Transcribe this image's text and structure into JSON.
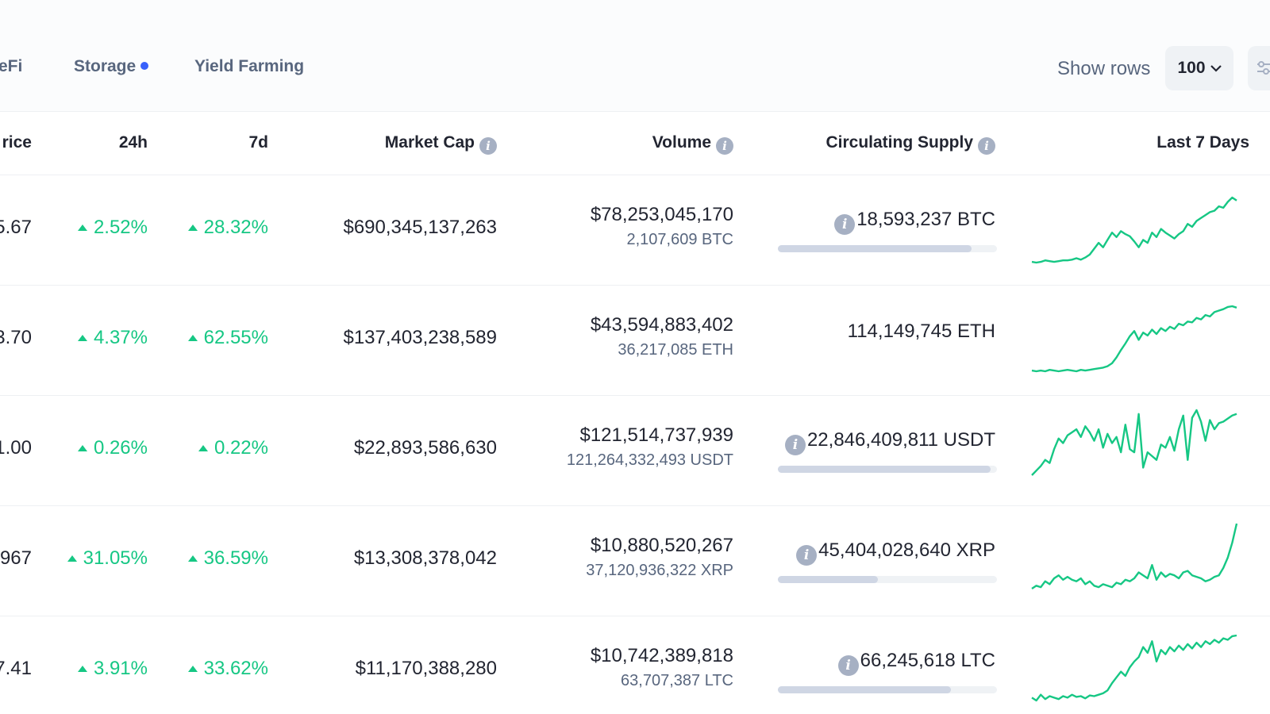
{
  "tabs": [
    {
      "label": "eFi",
      "dot": false
    },
    {
      "label": "Storage",
      "dot": true
    },
    {
      "label": "Yield Farming",
      "dot": false
    }
  ],
  "controls": {
    "show_rows_label": "Show rows",
    "rows_value": "100"
  },
  "columns": [
    "rice",
    "24h",
    "7d",
    "Market Cap",
    "Volume",
    "Circulating Supply",
    "Last 7 Days"
  ],
  "accent_color": "#16c784",
  "rows": [
    {
      "price": "5.67",
      "change_24h": "2.52%",
      "change_7d": "28.32%",
      "market_cap": "$690,345,137,263",
      "volume_usd": "$78,253,045,170",
      "volume_coin": "2,107,609 BTC",
      "supply": "18,593,237 BTC",
      "supply_info": true,
      "supply_progress": 0.885,
      "spark": [
        10,
        9,
        10,
        12,
        11,
        10,
        11,
        12,
        12,
        13,
        15,
        13,
        16,
        20,
        28,
        36,
        30,
        40,
        50,
        44,
        52,
        48,
        45,
        38,
        30,
        40,
        36,
        50,
        44,
        55,
        50,
        46,
        42,
        48,
        52,
        62,
        58,
        66,
        70,
        74,
        78,
        80,
        86,
        84,
        92,
        98,
        94
      ]
    },
    {
      "price": "3.70",
      "change_24h": "4.37%",
      "change_7d": "62.55%",
      "market_cap": "$137,403,238,589",
      "volume_usd": "$43,594,883,402",
      "volume_coin": "36,217,085 ETH",
      "supply": "114,149,745 ETH",
      "supply_info": false,
      "supply_progress": null,
      "spark": [
        8,
        7,
        8,
        7,
        9,
        8,
        7,
        8,
        9,
        8,
        7,
        9,
        8,
        9,
        10,
        11,
        12,
        14,
        18,
        26,
        36,
        45,
        55,
        62,
        50,
        60,
        56,
        64,
        58,
        66,
        62,
        68,
        65,
        72,
        70,
        75,
        74,
        80,
        78,
        84,
        82,
        88,
        90,
        92,
        95,
        96,
        94
      ]
    },
    {
      "price": "1.00",
      "change_24h": "0.26%",
      "change_7d": "0.22%",
      "market_cap": "$22,893,586,630",
      "volume_usd": "$121,514,737,939",
      "volume_coin": "121,264,332,493 USDT",
      "supply": "22,846,409,811 USDT",
      "supply_info": true,
      "supply_progress": 0.97,
      "spark": [
        10,
        16,
        22,
        30,
        26,
        44,
        58,
        52,
        62,
        66,
        70,
        60,
        74,
        66,
        55,
        70,
        46,
        64,
        52,
        60,
        40,
        76,
        44,
        40,
        90,
        20,
        40,
        35,
        30,
        50,
        46,
        60,
        42,
        70,
        88,
        30,
        85,
        95,
        80,
        55,
        82,
        70,
        78,
        80,
        84,
        88,
        90
      ]
    },
    {
      "price": "967",
      "change_24h": "31.05%",
      "change_7d": "36.59%",
      "market_cap": "$13,308,378,042",
      "volume_usd": "$10,880,520,267",
      "volume_coin": "37,120,936,322 XRP",
      "supply": "45,404,028,640 XRP",
      "supply_info": true,
      "supply_progress": 0.455,
      "spark": [
        8,
        12,
        10,
        18,
        14,
        22,
        26,
        20,
        24,
        20,
        18,
        22,
        14,
        18,
        12,
        10,
        14,
        12,
        10,
        16,
        14,
        20,
        18,
        22,
        30,
        26,
        22,
        40,
        20,
        30,
        24,
        28,
        26,
        22,
        30,
        32,
        26,
        24,
        22,
        18,
        20,
        24,
        26,
        36,
        50,
        70,
        96
      ]
    },
    {
      "price": "7.41",
      "change_24h": "3.91%",
      "change_7d": "33.62%",
      "market_cap": "$11,170,388,280",
      "volume_usd": "$10,742,389,818",
      "volume_coin": "63,707,387 LTC",
      "supply": "66,245,618 LTC",
      "supply_info": true,
      "supply_progress": 0.79,
      "spark": [
        10,
        6,
        14,
        8,
        12,
        10,
        8,
        12,
        10,
        14,
        11,
        12,
        9,
        13,
        12,
        14,
        16,
        20,
        30,
        38,
        46,
        40,
        52,
        60,
        66,
        80,
        72,
        88,
        60,
        76,
        70,
        80,
        74,
        82,
        76,
        84,
        78,
        86,
        80,
        88,
        84,
        90,
        86,
        92,
        90,
        95,
        96
      ]
    }
  ]
}
